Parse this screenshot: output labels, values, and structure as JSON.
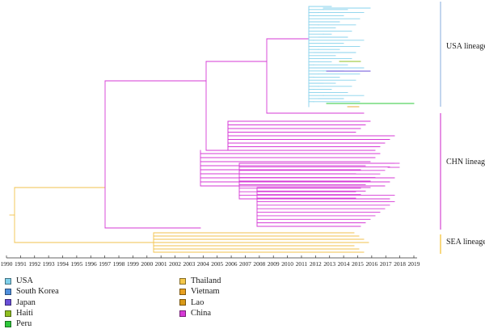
{
  "chart_data": {
    "type": "phylogenetic-tree",
    "x_axis": {
      "ticks": [
        "1990",
        "1991",
        "1992",
        "1993",
        "1994",
        "1995",
        "1996",
        "1997",
        "1998",
        "1999",
        "2000",
        "2001",
        "2002",
        "2003",
        "2004",
        "2005",
        "2006",
        "2007",
        "2008",
        "2009",
        "2010",
        "2011",
        "2012",
        "2013",
        "2014",
        "2015",
        "2016",
        "2017",
        "2018",
        "2019"
      ],
      "range": [
        1990,
        2019
      ]
    },
    "lineages": [
      {
        "label": "USA lineage",
        "color": "#a9c3e6"
      },
      {
        "label": "CHN lineage",
        "color": "#dc60d9"
      },
      {
        "label": "SEA lineage",
        "color": "#f4c74a"
      }
    ],
    "legend": [
      {
        "label": "USA",
        "color": "#7fd0ea"
      },
      {
        "label": "South Korea",
        "color": "#4f8fdc"
      },
      {
        "label": "Japan",
        "color": "#6a4fd8"
      },
      {
        "label": "Haiti",
        "color": "#8fbf1f"
      },
      {
        "label": "Peru",
        "color": "#2ec83a"
      },
      {
        "label": "Thailand",
        "color": "#f4c74a"
      },
      {
        "label": "Vietnam",
        "color": "#e8a020"
      },
      {
        "label": "Lao",
        "color": "#d99a18"
      },
      {
        "label": "China",
        "color": "#d63ad6"
      }
    ],
    "colors": {
      "usa_branch": "#86d2ec",
      "china_branch": "#d63ad6",
      "sea_branch": "#f2c24c",
      "root": "#f2c24c"
    }
  }
}
